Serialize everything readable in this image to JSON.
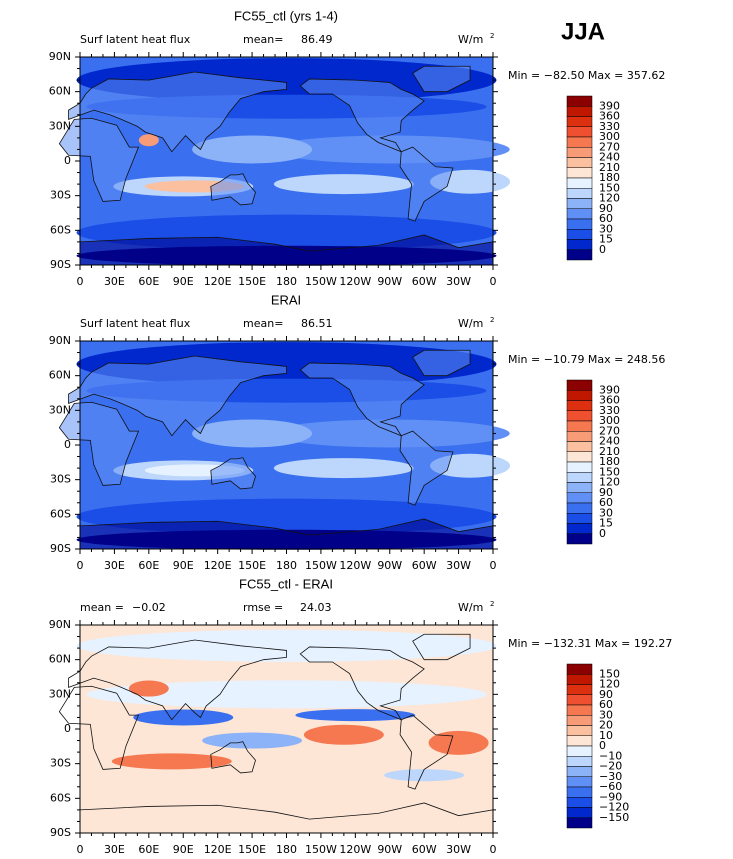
{
  "header": {
    "season": "JJA"
  },
  "lat_labels": [
    "90N",
    "60N",
    "30N",
    "0",
    "30S",
    "60S",
    "90S"
  ],
  "lon_labels": [
    "0",
    "30E",
    "60E",
    "90E",
    "120E",
    "150E",
    "180",
    "150W",
    "120W",
    "90W",
    "60W",
    "30W",
    "0"
  ],
  "units": {
    "base": "W/m",
    "sup": "2"
  },
  "panels": [
    {
      "title": "FC55_ctl (yrs 1-4)",
      "subtitle": "Surf latent heat flux",
      "stat1_name": "mean=",
      "stat1_value": "86.49",
      "range": "Min = −82.50 Max = 357.62",
      "levels": [
        "390",
        "360",
        "330",
        "300",
        "270",
        "240",
        "210",
        "180",
        "150",
        "120",
        "90",
        "60",
        "30",
        "15",
        "0"
      ]
    },
    {
      "title": "ERAI",
      "subtitle": "Surf latent heat flux",
      "stat1_name": "mean=",
      "stat1_value": "86.51",
      "range": "Min = −10.79 Max = 248.56",
      "levels": [
        "390",
        "360",
        "330",
        "300",
        "270",
        "240",
        "210",
        "180",
        "150",
        "120",
        "90",
        "60",
        "30",
        "15",
        "0"
      ]
    },
    {
      "title": "FC55_ctl - ERAI",
      "stat1_name": "mean =",
      "stat1_value": "−0.02",
      "stat2_name": "rmse =",
      "stat2_value": "24.03",
      "range": "Min = −132.31 Max = 192.27",
      "levels": [
        "150",
        "120",
        "90",
        "60",
        "30",
        "20",
        "10",
        "0",
        "−10",
        "−20",
        "−30",
        "−60",
        "−90",
        "−120",
        "−150"
      ]
    }
  ],
  "colors": [
    "#8b0000",
    "#c01800",
    "#dc3010",
    "#ee5030",
    "#f57850",
    "#f89c78",
    "#fbc0a0",
    "#fde6d6",
    "#e6f2ff",
    "#bcd6fc",
    "#8cb2f8",
    "#6090f5",
    "#3a70f0",
    "#1a4ee6",
    "#0028cc",
    "#000088"
  ]
}
